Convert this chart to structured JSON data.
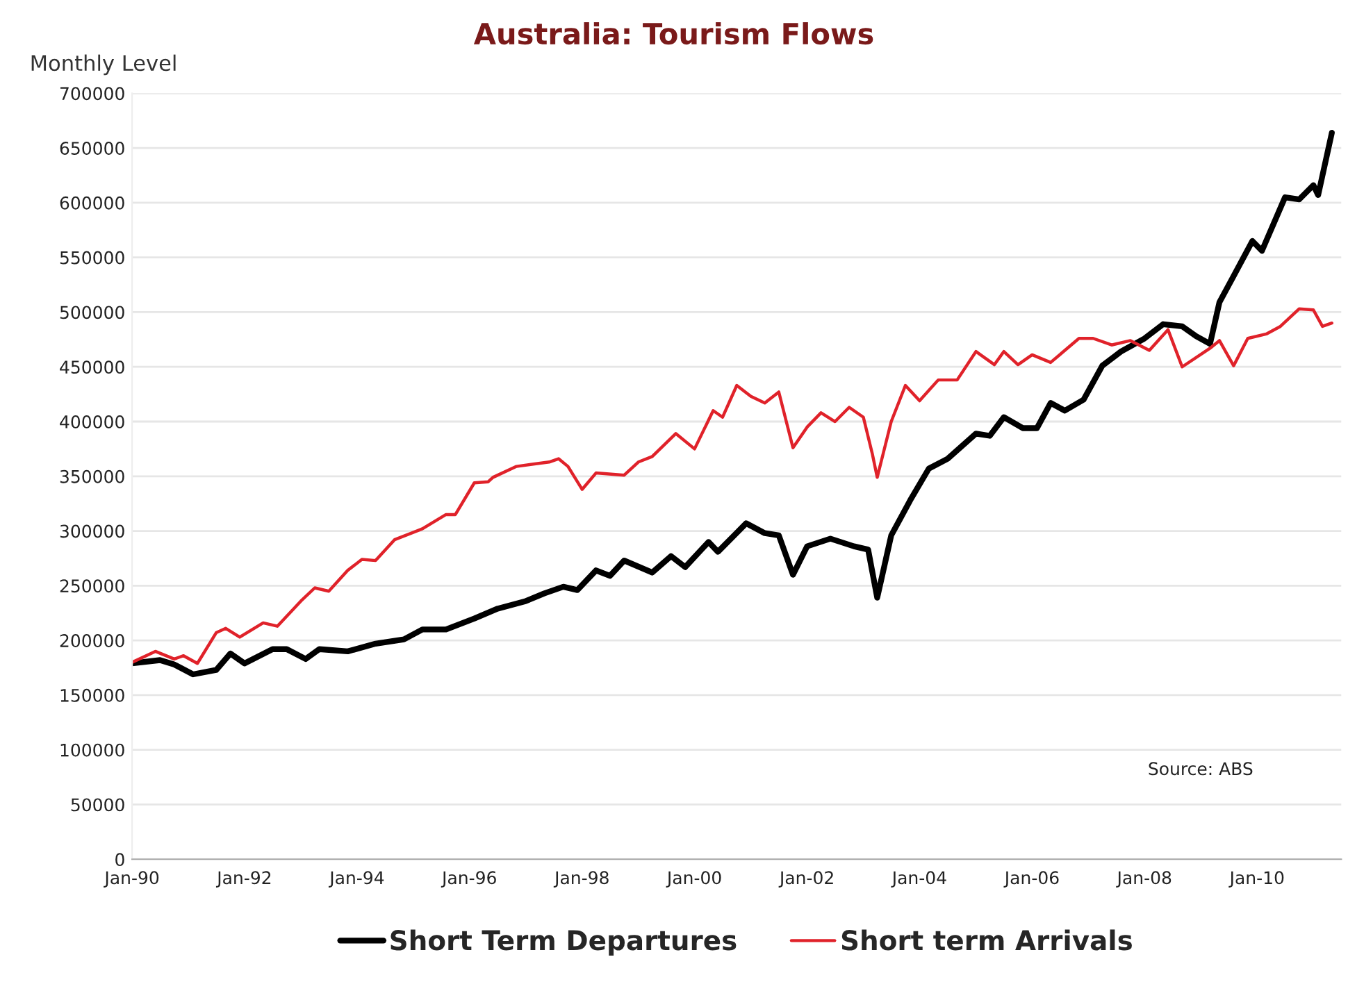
{
  "chart_data": {
    "type": "line",
    "title": "Australia: Tourism Flows",
    "ylabel": "Monthly Level",
    "annotations": [
      "Source: ABS"
    ],
    "xlim": [
      "1990-01",
      "2011-07"
    ],
    "xticks": [
      {
        "value": "1990-01",
        "label": "Jan-90"
      },
      {
        "value": "1992-01",
        "label": "Jan-92"
      },
      {
        "value": "1994-01",
        "label": "Jan-94"
      },
      {
        "value": "1996-01",
        "label": "Jan-96"
      },
      {
        "value": "1998-01",
        "label": "Jan-98"
      },
      {
        "value": "2000-01",
        "label": "Jan-00"
      },
      {
        "value": "2002-01",
        "label": "Jan-02"
      },
      {
        "value": "2004-01",
        "label": "Jan-04"
      },
      {
        "value": "2006-01",
        "label": "Jan-06"
      },
      {
        "value": "2008-01",
        "label": "Jan-08"
      },
      {
        "value": "2010-01",
        "label": "Jan-10"
      }
    ],
    "ylim": [
      0,
      700000
    ],
    "yticks": [
      0,
      50000,
      100000,
      150000,
      200000,
      250000,
      300000,
      350000,
      400000,
      450000,
      500000,
      550000,
      600000,
      650000,
      700000
    ],
    "grid": "y",
    "legend": "bottom",
    "marker": "none",
    "line_style": "solid",
    "series": [
      {
        "name": "Short Term Departures",
        "color": "#000000",
        "x": [
          "1990-01",
          "1990-07",
          "1990-10",
          "1991-02",
          "1991-07",
          "1991-10",
          "1992-01",
          "1992-07",
          "1992-10",
          "1993-02",
          "1993-05",
          "1993-11",
          "1994-05",
          "1994-11",
          "1995-03",
          "1995-08",
          "1996-02",
          "1996-07",
          "1997-01",
          "1997-05",
          "1997-09",
          "1997-12",
          "1998-04",
          "1998-07",
          "1998-10",
          "1999-04",
          "1999-08",
          "1999-11",
          "2000-04",
          "2000-06",
          "2000-12",
          "2001-04",
          "2001-07",
          "2001-10",
          "2002-01",
          "2002-06",
          "2002-11",
          "2003-02",
          "2003-04",
          "2003-07",
          "2003-11",
          "2004-03",
          "2004-07",
          "2005-01",
          "2005-04",
          "2005-07",
          "2005-11",
          "2006-02",
          "2006-05",
          "2006-08",
          "2006-12",
          "2007-04",
          "2007-08",
          "2008-01",
          "2008-05",
          "2008-09",
          "2008-12",
          "2009-03",
          "2009-05",
          "2009-08",
          "2009-12",
          "2010-02",
          "2010-07",
          "2010-10",
          "2011-01",
          "2011-02",
          "2011-05"
        ],
        "values": [
          179000,
          182000,
          178000,
          169000,
          173000,
          188000,
          179000,
          192000,
          192000,
          183000,
          192000,
          190000,
          197000,
          201000,
          210000,
          210000,
          220000,
          229000,
          236000,
          243000,
          249000,
          246000,
          264000,
          259000,
          273000,
          262000,
          277000,
          267000,
          290000,
          281000,
          307000,
          298000,
          296000,
          260000,
          286000,
          293000,
          286000,
          283000,
          239000,
          296000,
          328000,
          357000,
          366000,
          389000,
          387000,
          404000,
          394000,
          394000,
          417000,
          410000,
          420000,
          451000,
          464000,
          476000,
          489000,
          487000,
          478000,
          471000,
          509000,
          533000,
          565000,
          556000,
          605000,
          603000,
          616000,
          607000,
          664000
        ]
      },
      {
        "name": "Short term Arrivals",
        "color": "#e0222a",
        "x": [
          "1990-01",
          "1990-06",
          "1990-10",
          "1990-12",
          "1991-03",
          "1991-07",
          "1991-09",
          "1991-12",
          "1992-05",
          "1992-08",
          "1993-01",
          "1993-04",
          "1993-07",
          "1993-11",
          "1994-02",
          "1994-05",
          "1994-09",
          "1995-03",
          "1995-08",
          "1995-10",
          "1996-02",
          "1996-05",
          "1996-06",
          "1996-11",
          "1997-06",
          "1997-08",
          "1997-10",
          "1998-01",
          "1998-04",
          "1998-10",
          "1999-01",
          "1999-04",
          "1999-09",
          "2000-01",
          "2000-05",
          "2000-07",
          "2000-10",
          "2001-01",
          "2001-04",
          "2001-07",
          "2001-10",
          "2002-01",
          "2002-04",
          "2002-07",
          "2002-10",
          "2003-01",
          "2003-03",
          "2003-04",
          "2003-07",
          "2003-10",
          "2004-01",
          "2004-05",
          "2004-09",
          "2005-01",
          "2005-05",
          "2005-07",
          "2005-10",
          "2006-01",
          "2006-05",
          "2006-11",
          "2007-02",
          "2007-06",
          "2007-10",
          "2008-02",
          "2008-06",
          "2008-09",
          "2009-03",
          "2009-05",
          "2009-08",
          "2009-11",
          "2010-03",
          "2010-06",
          "2010-10",
          "2011-01",
          "2011-03",
          "2011-05"
        ],
        "values": [
          180000,
          190000,
          183000,
          186000,
          179000,
          207000,
          211000,
          203000,
          216000,
          213000,
          236000,
          248000,
          245000,
          264000,
          274000,
          273000,
          292000,
          302000,
          315000,
          315000,
          344000,
          345000,
          349000,
          359000,
          363000,
          366000,
          359000,
          338000,
          353000,
          351000,
          363000,
          368000,
          389000,
          375000,
          410000,
          404000,
          433000,
          423000,
          417000,
          427000,
          376000,
          395000,
          408000,
          400000,
          413000,
          404000,
          370000,
          349000,
          400000,
          433000,
          419000,
          438000,
          438000,
          464000,
          452000,
          464000,
          452000,
          461000,
          454000,
          476000,
          476000,
          470000,
          474000,
          465000,
          484000,
          450000,
          467000,
          474000,
          451000,
          476000,
          480000,
          487000,
          503000,
          502000,
          487000,
          490000
        ]
      }
    ]
  }
}
